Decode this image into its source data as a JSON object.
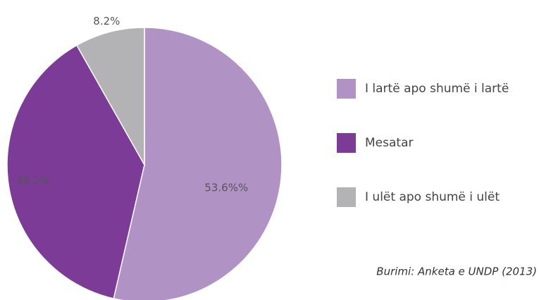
{
  "chart_data": {
    "type": "pie",
    "categories": [
      "I lartë apo shumë i lartë",
      "Mesatar",
      "I ulët apo shumë i ulët"
    ],
    "values": [
      53.6,
      38.2,
      8.2
    ],
    "value_labels": [
      "53.6%%",
      "38.2%",
      "8.2%"
    ],
    "colors": [
      "#b192c5",
      "#7b3b96",
      "#b3b3b5"
    ],
    "source": "Burimi: Anketa e UNDP  (2013)"
  }
}
